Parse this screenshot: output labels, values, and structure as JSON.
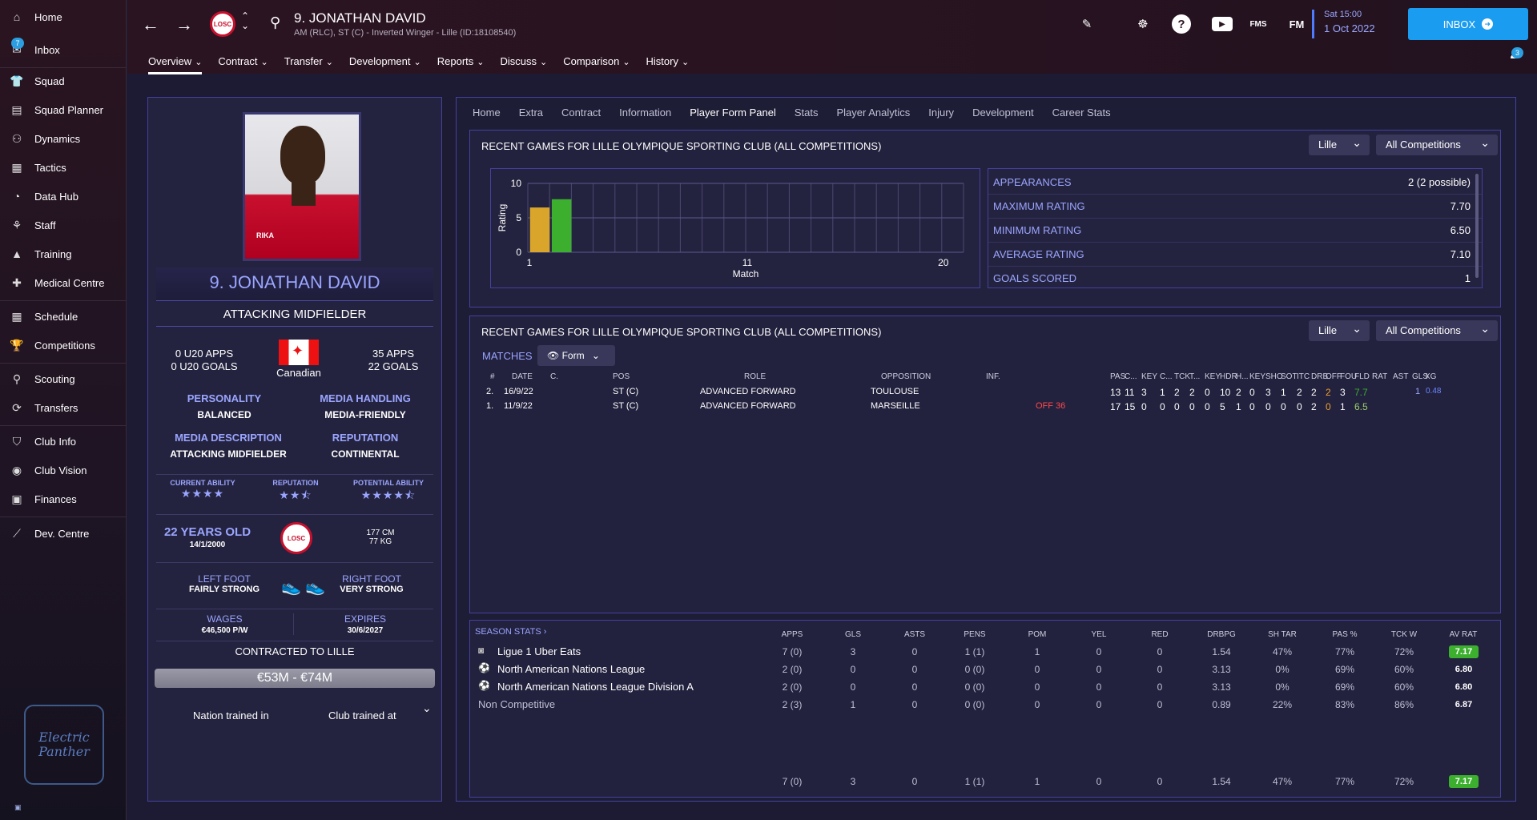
{
  "sidebar": {
    "items": [
      {
        "label": "Home",
        "icon": "home-icon",
        "glyph": "⌂"
      },
      {
        "label": "Inbox",
        "icon": "inbox-icon",
        "glyph": "✉",
        "badge": "7"
      },
      {
        "label": "Squad",
        "icon": "squad-icon",
        "glyph": "👕"
      },
      {
        "label": "Squad Planner",
        "icon": "squad-planner-icon",
        "glyph": "▤"
      },
      {
        "label": "Dynamics",
        "icon": "dynamics-icon",
        "glyph": "⚇"
      },
      {
        "label": "Tactics",
        "icon": "tactics-icon",
        "glyph": "▦"
      },
      {
        "label": "Data Hub",
        "icon": "data-hub-icon",
        "glyph": "◔"
      },
      {
        "label": "Staff",
        "icon": "staff-icon",
        "glyph": "⚘"
      },
      {
        "label": "Training",
        "icon": "training-icon",
        "glyph": "▲"
      },
      {
        "label": "Medical Centre",
        "icon": "medical-centre-icon",
        "glyph": "✚"
      },
      {
        "label": "Schedule",
        "icon": "schedule-icon",
        "glyph": "▦"
      },
      {
        "label": "Competitions",
        "icon": "competitions-icon",
        "glyph": "🏆"
      },
      {
        "label": "Scouting",
        "icon": "scouting-icon",
        "glyph": "⚲"
      },
      {
        "label": "Transfers",
        "icon": "transfers-icon",
        "glyph": "⟳"
      },
      {
        "label": "Club Info",
        "icon": "club-info-icon",
        "glyph": "⛉"
      },
      {
        "label": "Club Vision",
        "icon": "club-vision-icon",
        "glyph": "◉"
      },
      {
        "label": "Finances",
        "icon": "finances-icon",
        "glyph": "▣"
      },
      {
        "label": "Dev. Centre",
        "icon": "dev-centre-icon",
        "glyph": "⟋"
      }
    ],
    "logo_text": "Electric Panther"
  },
  "header": {
    "player_name": "9. JONATHAN DAVID",
    "player_sub": "AM (RLC), ST (C) - Inverted Winger - Lille (ID:18108540)",
    "club_abbr": "LOSC",
    "date_line1": "Sat 15:00",
    "date_line2": "1 Oct 2022",
    "inbox_label": "INBOX",
    "fms_label": "FMS",
    "fm_label": "FM",
    "notif_count": "3",
    "tabs": [
      "Overview",
      "Contract",
      "Transfer",
      "Development",
      "Reports",
      "Discuss",
      "Comparison",
      "History"
    ]
  },
  "profile": {
    "name": "9. JONATHAN DAVID",
    "position": "ATTACKING MIDFIELDER",
    "u20_apps": "0 U20 APPS",
    "u20_goals": "0 U20 GOALS",
    "nationality": "Canadian",
    "apps": "35 APPS",
    "goals": "22 GOALS",
    "personality_label": "PERSONALITY",
    "personality": "BALANCED",
    "media_handling_label": "MEDIA HANDLING",
    "media_handling": "MEDIA-FRIENDLY",
    "media_desc_label": "MEDIA DESCRIPTION",
    "media_desc": "ATTACKING MIDFIELDER",
    "reputation_label": "REPUTATION",
    "reputation": "CONTINENTAL",
    "ca_label": "CURRENT ABILITY",
    "ca_stars": 4,
    "rep_label": "REPUTATION",
    "rep_stars": 2.5,
    "pa_label": "POTENTIAL ABILITY",
    "pa_stars": 4.5,
    "age": "22 YEARS OLD",
    "dob": "14/1/2000",
    "height": "177 CM",
    "weight": "77 KG",
    "left_foot_label": "LEFT FOOT",
    "left_foot": "FAIRLY STRONG",
    "right_foot_label": "RIGHT FOOT",
    "right_foot": "VERY STRONG",
    "wages_label": "WAGES",
    "wages": "€46,500 P/W",
    "expires_label": "EXPIRES",
    "expires": "30/6/2027",
    "contracted": "CONTRACTED TO LILLE",
    "value": "€53M - €74M",
    "nation_trained": "Nation trained in",
    "club_trained": "Club trained at",
    "photo_sponsor": "RIKA"
  },
  "subtabs": [
    "Home",
    "Extra",
    "Contract",
    "Information",
    "Player Form Panel",
    "Stats",
    "Player Analytics",
    "Injury",
    "Development",
    "Career Stats"
  ],
  "form_card": {
    "title": "RECENT GAMES FOR LILLE OLYMPIQUE SPORTING CLUB (ALL COMPETITIONS)",
    "club_dd": "Lille",
    "comp_dd": "All Competitions",
    "summary": [
      {
        "k": "APPEARANCES",
        "v": "2 (2 possible)"
      },
      {
        "k": "MAXIMUM RATING",
        "v": "7.70"
      },
      {
        "k": "MINIMUM RATING",
        "v": "6.50"
      },
      {
        "k": "AVERAGE RATING",
        "v": "7.10"
      },
      {
        "k": "GOALS SCORED",
        "v": "1"
      }
    ]
  },
  "chart_data": {
    "type": "bar",
    "x": [
      1,
      2
    ],
    "values": [
      6.5,
      7.7
    ],
    "colors": [
      "#d9a52b",
      "#3caf2e"
    ],
    "xlabel": "Match",
    "ylabel": "Rating",
    "ylim": [
      0,
      10
    ],
    "xlim": [
      1,
      20
    ],
    "xticks": [
      "1",
      "11",
      "20"
    ],
    "yticks": [
      "0",
      "5",
      "10"
    ],
    "grid": true
  },
  "matches_card": {
    "title": "RECENT GAMES FOR LILLE OLYMPIQUE SPORTING CLUB (ALL COMPETITIONS)",
    "club_dd": "Lille",
    "comp_dd": "All Competitions",
    "matches_label": "MATCHES",
    "form_btn": "Form",
    "headers": [
      "#",
      "DATE",
      "C.",
      "POS",
      "ROLE",
      "OPPOSITION",
      "INF.",
      "PAS",
      "C...",
      "KEY",
      "C...",
      "TCK",
      "T...",
      "KEY",
      "HDR",
      "H...",
      "KEY",
      "SHO",
      "SOT",
      "ITC",
      "DRB",
      "OFF",
      "FOU",
      "FLD",
      "RAT",
      "AST",
      "GLS",
      "XG"
    ],
    "rows": [
      {
        "n": "2.",
        "date": "16/9/22",
        "pos": "ST (C)",
        "role": "ADVANCED FORWARD",
        "opp": "TOULOUSE",
        "inf": "",
        "stats": [
          "13",
          "11",
          "3",
          "1",
          "2",
          "2",
          "0",
          "10",
          "2",
          "0",
          "3",
          "1",
          "2",
          "2",
          "2",
          "3"
        ],
        "rat": "7.7",
        "ast": "",
        "gls": "1",
        "xg": "0.48"
      },
      {
        "n": "1.",
        "date": "11/9/22",
        "pos": "ST (C)",
        "role": "ADVANCED FORWARD",
        "opp": "MARSEILLE",
        "inf": "OFF 36",
        "stats": [
          "17",
          "15",
          "0",
          "0",
          "0",
          "0",
          "0",
          "5",
          "1",
          "0",
          "0",
          "0",
          "0",
          "2",
          "0",
          "1"
        ],
        "rat": "6.5",
        "ast": "",
        "gls": "",
        "xg": ""
      }
    ]
  },
  "season": {
    "title": "SEASON STATS",
    "headers": [
      "APPS",
      "GLS",
      "ASTS",
      "PENS",
      "POM",
      "YEL",
      "RED",
      "DRBPG",
      "SH TAR",
      "PAS %",
      "TCK W",
      "AV RAT"
    ],
    "rows": [
      {
        "name": "Ligue 1 Uber Eats",
        "vals": [
          "7 (0)",
          "3",
          "0",
          "1 (1)",
          "1",
          "0",
          "0",
          "1.54",
          "47%",
          "77%",
          "72%"
        ],
        "rat": "7.17",
        "badge": true
      },
      {
        "name": "North American Nations League",
        "vals": [
          "2 (0)",
          "0",
          "0",
          "0 (0)",
          "0",
          "0",
          "0",
          "3.13",
          "0%",
          "69%",
          "60%"
        ],
        "rat": "6.80",
        "badge": false
      },
      {
        "name": "North American Nations League Division A",
        "vals": [
          "2 (0)",
          "0",
          "0",
          "0 (0)",
          "0",
          "0",
          "0",
          "3.13",
          "0%",
          "69%",
          "60%"
        ],
        "rat": "6.80",
        "badge": false
      },
      {
        "name": "Non Competitive",
        "vals": [
          "2 (3)",
          "1",
          "0",
          "0 (0)",
          "0",
          "0",
          "0",
          "0.89",
          "22%",
          "83%",
          "86%"
        ],
        "rat": "6.87",
        "badge": false
      }
    ],
    "total": {
      "vals": [
        "7 (0)",
        "3",
        "0",
        "1 (1)",
        "1",
        "0",
        "0",
        "1.54",
        "47%",
        "77%",
        "72%"
      ],
      "rat": "7.17"
    }
  }
}
